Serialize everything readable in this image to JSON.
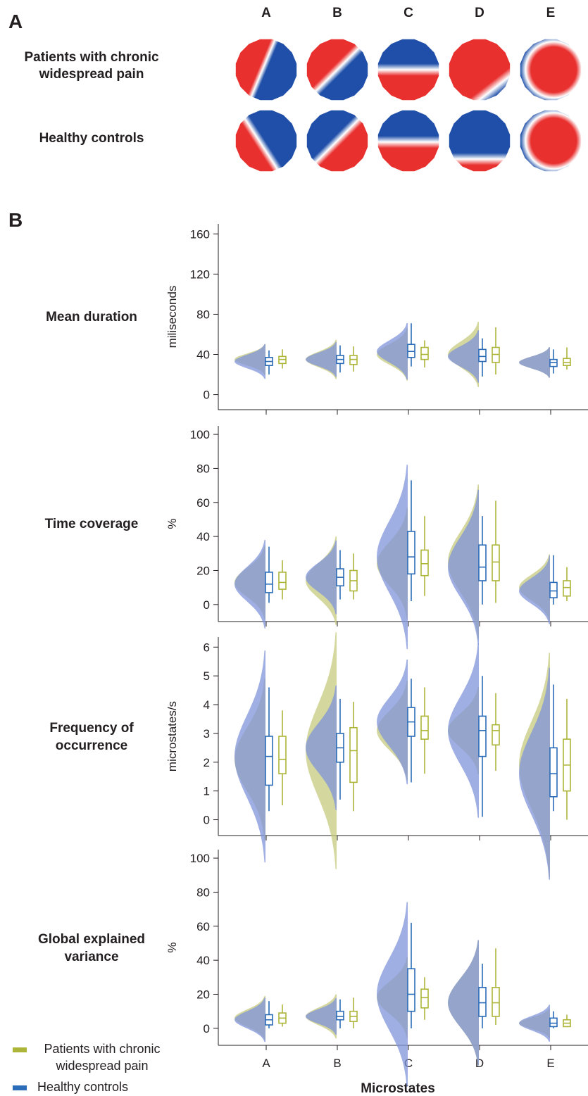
{
  "panel_a": {
    "label": "A",
    "columns": [
      "A",
      "B",
      "C",
      "D",
      "E"
    ],
    "rows": [
      "Patients with chronic widespread pain",
      "Healthy controls"
    ]
  },
  "panel_b_label": "B",
  "chart_data": [
    {
      "type": "box",
      "title": "Mean duration",
      "ylabel": "miliseconds",
      "ylim": [
        -15,
        170
      ],
      "yticks": [
        0,
        40,
        80,
        120,
        160
      ],
      "series": [
        {
          "values": [
            {
              "whislo": 20,
              "q1": 29,
              "med": 33,
              "q3": 37,
              "whishi": 44
            },
            {
              "whislo": 22,
              "q1": 31,
              "med": 35,
              "q3": 39,
              "whishi": 49
            },
            {
              "whislo": 28,
              "q1": 37,
              "med": 43,
              "q3": 50,
              "whishi": 71
            },
            {
              "whislo": 18,
              "q1": 33,
              "med": 38,
              "q3": 45,
              "whishi": 56
            },
            {
              "whislo": 21,
              "q1": 28,
              "med": 32,
              "q3": 35,
              "whishi": 45
            }
          ]
        },
        {
          "values": [
            {
              "whislo": 26,
              "q1": 31,
              "med": 35,
              "q3": 38,
              "whishi": 45
            },
            {
              "whislo": 23,
              "q1": 30,
              "med": 35,
              "q3": 39,
              "whishi": 48
            },
            {
              "whislo": 27,
              "q1": 35,
              "med": 40,
              "q3": 47,
              "whishi": 54
            },
            {
              "whislo": 20,
              "q1": 32,
              "med": 40,
              "q3": 47,
              "whishi": 67
            },
            {
              "whislo": 25,
              "q1": 29,
              "med": 32,
              "q3": 36,
              "whishi": 47
            }
          ]
        }
      ]
    },
    {
      "type": "box",
      "title": "Time coverage",
      "ylabel": "%",
      "ylim": [
        -10,
        105
      ],
      "yticks": [
        0,
        20,
        40,
        60,
        80,
        100
      ],
      "series": [
        {
          "values": [
            {
              "whislo": 1,
              "q1": 7,
              "med": 12,
              "q3": 19,
              "whishi": 34
            },
            {
              "whislo": 3,
              "q1": 11,
              "med": 16,
              "q3": 21,
              "whishi": 32
            },
            {
              "whislo": 2,
              "q1": 18,
              "med": 28,
              "q3": 43,
              "whishi": 73
            },
            {
              "whislo": 0,
              "q1": 14,
              "med": 22,
              "q3": 35,
              "whishi": 52
            },
            {
              "whislo": 0,
              "q1": 4,
              "med": 8,
              "q3": 13,
              "whishi": 29
            }
          ]
        },
        {
          "values": [
            {
              "whislo": 3,
              "q1": 9,
              "med": 13,
              "q3": 19,
              "whishi": 26
            },
            {
              "whislo": 3,
              "q1": 8,
              "med": 14,
              "q3": 20,
              "whishi": 30
            },
            {
              "whislo": 5,
              "q1": 17,
              "med": 24,
              "q3": 32,
              "whishi": 52
            },
            {
              "whislo": 1,
              "q1": 14,
              "med": 25,
              "q3": 35,
              "whishi": 61
            },
            {
              "whislo": 2,
              "q1": 5,
              "med": 10,
              "q3": 14,
              "whishi": 22
            }
          ]
        }
      ]
    },
    {
      "type": "box",
      "title": "Frequency of occurrence",
      "ylabel": "microstates/s",
      "ylim": [
        -0.55,
        6.35
      ],
      "yticks": [
        0,
        1,
        2,
        3,
        4,
        5,
        6
      ],
      "series": [
        {
          "values": [
            {
              "whislo": 0.3,
              "q1": 1.2,
              "med": 2.2,
              "q3": 2.9,
              "whishi": 4.6
            },
            {
              "whislo": 0.7,
              "q1": 2.0,
              "med": 2.5,
              "q3": 3.0,
              "whishi": 4.2
            },
            {
              "whislo": 1.3,
              "q1": 2.9,
              "med": 3.4,
              "q3": 3.9,
              "whishi": 4.9
            },
            {
              "whislo": 0.1,
              "q1": 2.2,
              "med": 3.1,
              "q3": 3.6,
              "whishi": 5.0
            },
            {
              "whislo": 0.3,
              "q1": 0.8,
              "med": 1.6,
              "q3": 2.5,
              "whishi": 4.7
            }
          ]
        },
        {
          "values": [
            {
              "whislo": 0.5,
              "q1": 1.6,
              "med": 2.1,
              "q3": 2.9,
              "whishi": 3.8
            },
            {
              "whislo": 0.3,
              "q1": 1.3,
              "med": 2.4,
              "q3": 3.2,
              "whishi": 4.1
            },
            {
              "whislo": 1.6,
              "q1": 2.8,
              "med": 3.1,
              "q3": 3.6,
              "whishi": 4.6
            },
            {
              "whislo": 1.7,
              "q1": 2.6,
              "med": 3.1,
              "q3": 3.3,
              "whishi": 4.4
            },
            {
              "whislo": 0,
              "q1": 1.0,
              "med": 1.9,
              "q3": 2.8,
              "whishi": 4.2
            }
          ]
        }
      ]
    },
    {
      "type": "box",
      "title": "Global explained variance",
      "ylabel": "%",
      "ylim": [
        -10,
        105
      ],
      "yticks": [
        0,
        20,
        40,
        60,
        80,
        100
      ],
      "xlabel": "Microstates",
      "categories": [
        "A",
        "B",
        "C",
        "D",
        "E"
      ],
      "series": [
        {
          "name": "Healthy controls",
          "color": "#2b6cb8",
          "values": [
            {
              "whislo": 0,
              "q1": 2,
              "med": 5,
              "q3": 8,
              "whishi": 16
            },
            {
              "whislo": 0,
              "q1": 5,
              "med": 7,
              "q3": 10,
              "whishi": 17
            },
            {
              "whislo": 0,
              "q1": 10,
              "med": 20,
              "q3": 35,
              "whishi": 62
            },
            {
              "whislo": 0,
              "q1": 7,
              "med": 15,
              "q3": 24,
              "whishi": 38
            },
            {
              "whislo": 0,
              "q1": 1,
              "med": 3,
              "q3": 6,
              "whishi": 10
            }
          ]
        },
        {
          "name": "Patients with chronic widespread pain",
          "color": "#adb539",
          "values": [
            {
              "whislo": 1,
              "q1": 3,
              "med": 6,
              "q3": 9,
              "whishi": 14
            },
            {
              "whislo": 0,
              "q1": 4,
              "med": 7,
              "q3": 10,
              "whishi": 18
            },
            {
              "whislo": 5,
              "q1": 12,
              "med": 18,
              "q3": 23,
              "whishi": 30
            },
            {
              "whislo": 2,
              "q1": 7,
              "med": 15,
              "q3": 24,
              "whishi": 47
            },
            {
              "whislo": 1,
              "q1": 1,
              "med": 3,
              "q3": 5,
              "whishi": 8
            }
          ]
        }
      ]
    }
  ]
}
